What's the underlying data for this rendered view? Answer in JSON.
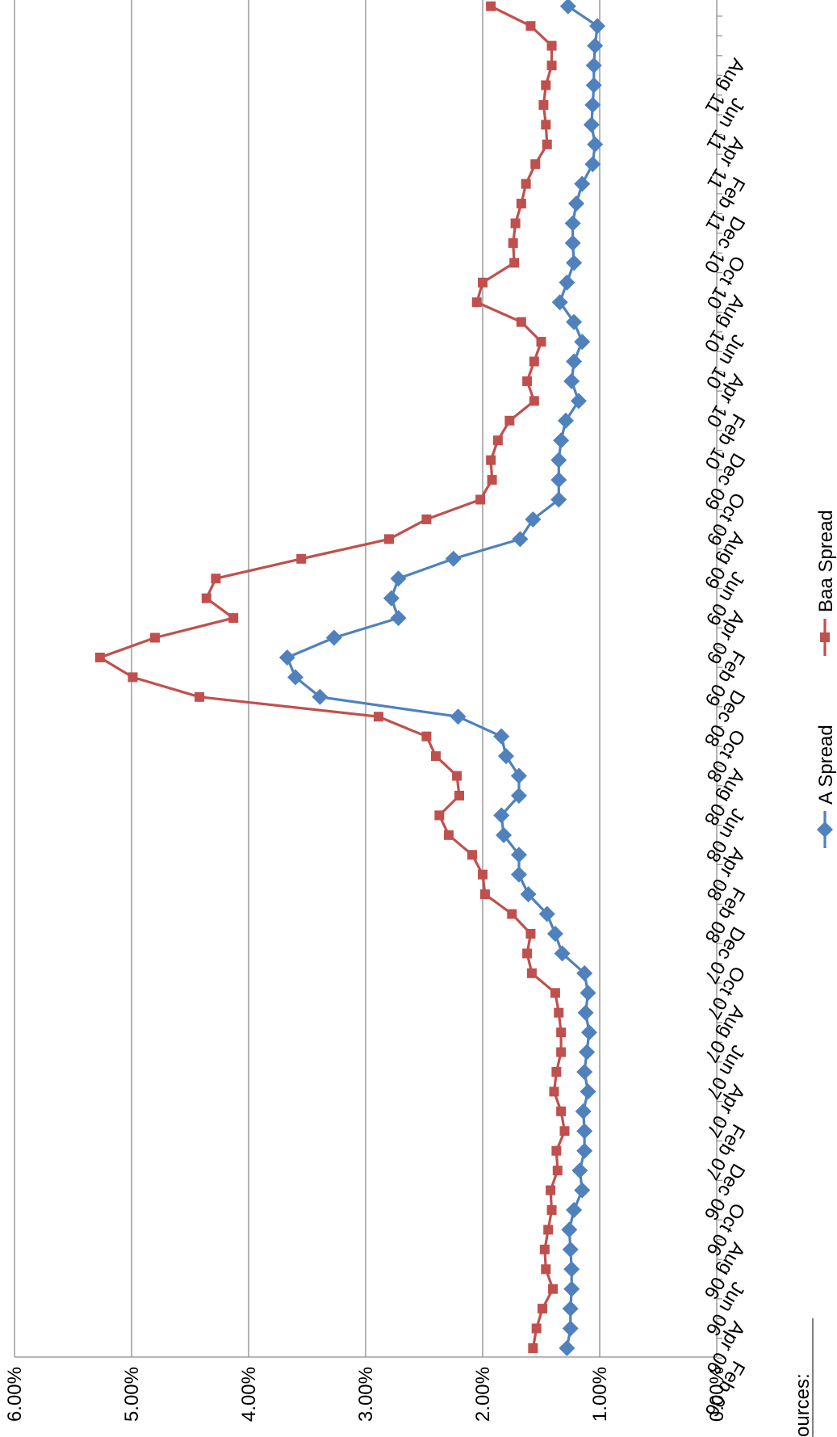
{
  "chart_data": {
    "type": "line",
    "orientation": "rotated-90-clockwise",
    "x": [
      "Feb 06",
      "Mar 06",
      "Apr 06",
      "May 06",
      "Jun 06",
      "Jul 06",
      "Aug 06",
      "Sep 06",
      "Oct 06",
      "Nov 06",
      "Dec 06",
      "Jan 07",
      "Feb 07",
      "Mar 07",
      "Apr 07",
      "May 07",
      "Jun 07",
      "Jul 07",
      "Aug 07",
      "Sep 07",
      "Oct 07",
      "Nov 07",
      "Dec 07",
      "Jan 08",
      "Feb 08",
      "Mar 08",
      "Apr 08",
      "May 08",
      "Jun 08",
      "Jul 08",
      "Aug 08",
      "Sep 08",
      "Oct 08",
      "Nov 08",
      "Dec 08",
      "Jan 09",
      "Feb 09",
      "Mar 09",
      "Apr 09",
      "May 09",
      "Jun 09",
      "Jul 09",
      "Aug 09",
      "Sep 09",
      "Oct 09",
      "Nov 09",
      "Dec 09",
      "Jan 10",
      "Feb 10",
      "Mar 10",
      "Apr 10",
      "May 10",
      "Jun 10",
      "Jul 10",
      "Aug 10",
      "Sep 10",
      "Oct 10",
      "Nov 10",
      "Dec 10",
      "Jan 11",
      "Feb 11",
      "Mar 11",
      "Apr 11",
      "May 11",
      "Jun 11",
      "Jul 11",
      "Aug 11",
      "Sep 11",
      "Oct 11"
    ],
    "x_tick_labels": [
      "Feb 06",
      "Apr 06",
      "Jun 06",
      "Aug 06",
      "Oct 06",
      "Dec 06",
      "Feb 07",
      "Apr 07",
      "Jun 07",
      "Aug 07",
      "Oct 07",
      "Dec 07",
      "Feb 08",
      "Apr 08",
      "Jun 08",
      "Aug 08",
      "Oct 08",
      "Dec 08",
      "Feb 09",
      "Apr 09",
      "Jun 09",
      "Aug 09",
      "Oct 09",
      "Dec 09",
      "Feb 10",
      "Apr 10",
      "Jun 10",
      "Aug 10",
      "Oct 10",
      "Dec 10",
      "Feb 11",
      "Apr 11",
      "Jun 11",
      "Aug 11"
    ],
    "series": [
      {
        "name": "A Spread",
        "color": "#4F81BD",
        "marker": "diamond",
        "values": [
          1.28,
          1.25,
          1.25,
          1.24,
          1.24,
          1.25,
          1.26,
          1.22,
          1.15,
          1.17,
          1.13,
          1.13,
          1.14,
          1.1,
          1.13,
          1.11,
          1.09,
          1.12,
          1.1,
          1.13,
          1.32,
          1.38,
          1.45,
          1.61,
          1.69,
          1.69,
          1.82,
          1.84,
          1.69,
          1.69,
          1.8,
          1.84,
          2.21,
          3.39,
          3.6,
          3.67,
          3.27,
          2.72,
          2.78,
          2.72,
          2.25,
          1.68,
          1.57,
          1.35,
          1.35,
          1.35,
          1.33,
          1.29,
          1.18,
          1.24,
          1.22,
          1.15,
          1.22,
          1.34,
          1.28,
          1.22,
          1.23,
          1.23,
          1.2,
          1.15,
          1.06,
          1.04,
          1.07,
          1.06,
          1.05,
          1.05,
          1.04,
          1.02,
          1.27
        ]
      },
      {
        "name": "Baa Spread",
        "color": "#C0504D",
        "marker": "square",
        "values": [
          1.57,
          1.54,
          1.49,
          1.4,
          1.46,
          1.47,
          1.44,
          1.41,
          1.42,
          1.36,
          1.37,
          1.3,
          1.33,
          1.39,
          1.37,
          1.33,
          1.33,
          1.35,
          1.38,
          1.58,
          1.62,
          1.59,
          1.75,
          1.98,
          2.0,
          2.09,
          2.29,
          2.37,
          2.2,
          2.22,
          2.4,
          2.48,
          2.89,
          4.42,
          4.99,
          5.27,
          4.8,
          4.13,
          4.36,
          4.28,
          3.55,
          2.8,
          2.48,
          2.02,
          1.92,
          1.93,
          1.87,
          1.77,
          1.56,
          1.62,
          1.56,
          1.5,
          1.67,
          2.05,
          2.0,
          1.73,
          1.74,
          1.72,
          1.67,
          1.63,
          1.55,
          1.45,
          1.46,
          1.48,
          1.46,
          1.41,
          1.41,
          1.59,
          1.93
        ]
      }
    ],
    "y_tick_labels": [
      "0.00%",
      "1.00%",
      "2.00%",
      "3.00%",
      "4.00%",
      "5.00%",
      "6.00%"
    ],
    "ylim": [
      0,
      6
    ],
    "grid": true,
    "legend": "bottom",
    "footnote": "ources:"
  }
}
